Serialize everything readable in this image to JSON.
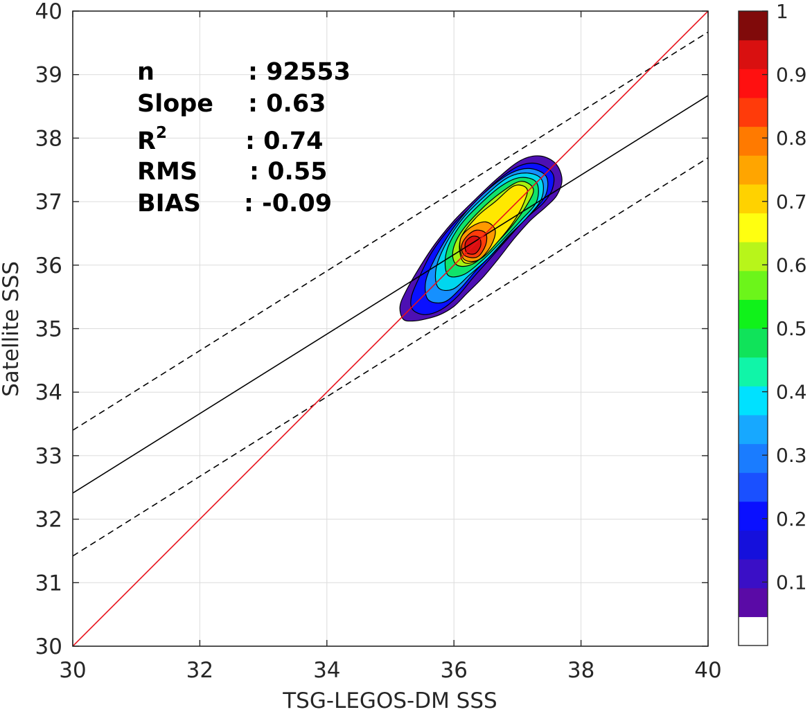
{
  "chart_data": {
    "type": "heatmap",
    "subtype": "filled-contour density scatter",
    "xlabel": "TSG-LEGOS-DM SSS",
    "ylabel": "Satellite SSS",
    "xlim": [
      30,
      40
    ],
    "ylim": [
      30,
      40
    ],
    "x_ticks": [
      30,
      32,
      34,
      36,
      38,
      40
    ],
    "y_ticks": [
      30,
      31,
      32,
      33,
      34,
      35,
      36,
      37,
      38,
      39,
      40
    ],
    "grid": true,
    "stats": [
      {
        "label": "n",
        "sep": ": ",
        "value": "92553"
      },
      {
        "label": "Slope",
        "sep": ": ",
        "value": "0.63"
      },
      {
        "label": "R",
        "sup": "2",
        "sep": ": ",
        "value": "0.74"
      },
      {
        "label": "RMS",
        "sep": ": ",
        "value": "0.55"
      },
      {
        "label": "BIAS",
        "sep": ": ",
        "value": "-0.09"
      }
    ],
    "lines": {
      "identity": {
        "x": [
          30,
          40
        ],
        "y": [
          30,
          40
        ],
        "color": "#e8101a",
        "style": "solid"
      },
      "regression": {
        "x": [
          30,
          40
        ],
        "y": [
          32.41,
          38.67
        ],
        "color": "#000000",
        "style": "solid"
      },
      "upper_bound": {
        "x": [
          30,
          40
        ],
        "y": [
          33.4,
          39.67
        ],
        "color": "#000000",
        "style": "dashed"
      },
      "lower_bound": {
        "x": [
          30,
          40
        ],
        "y": [
          31.42,
          37.69
        ],
        "color": "#000000",
        "style": "dashed"
      }
    },
    "density_levels": [
      {
        "level": 0.05,
        "color": "#4d10b3",
        "points": [
          [
            35.2,
            35.15
          ],
          [
            35.35,
            35.12
          ],
          [
            35.55,
            35.15
          ],
          [
            35.78,
            35.22
          ],
          [
            36.0,
            35.35
          ],
          [
            36.2,
            35.55
          ],
          [
            36.45,
            35.8
          ],
          [
            36.7,
            36.1
          ],
          [
            36.95,
            36.42
          ],
          [
            37.2,
            36.7
          ],
          [
            37.45,
            36.92
          ],
          [
            37.62,
            37.1
          ],
          [
            37.7,
            37.35
          ],
          [
            37.6,
            37.6
          ],
          [
            37.35,
            37.72
          ],
          [
            37.05,
            37.65
          ],
          [
            36.7,
            37.38
          ],
          [
            36.35,
            37.05
          ],
          [
            36.0,
            36.7
          ],
          [
            35.7,
            36.33
          ],
          [
            35.45,
            35.95
          ],
          [
            35.25,
            35.6
          ],
          [
            35.15,
            35.35
          ]
        ]
      },
      {
        "level": 0.1,
        "color": "#0a10ff",
        "points": [
          [
            35.35,
            35.3
          ],
          [
            35.55,
            35.22
          ],
          [
            35.8,
            35.3
          ],
          [
            36.05,
            35.5
          ],
          [
            36.3,
            35.8
          ],
          [
            36.55,
            36.08
          ],
          [
            36.85,
            36.42
          ],
          [
            37.15,
            36.75
          ],
          [
            37.4,
            36.97
          ],
          [
            37.55,
            37.2
          ],
          [
            37.55,
            37.45
          ],
          [
            37.3,
            37.6
          ],
          [
            37.0,
            37.55
          ],
          [
            36.65,
            37.3
          ],
          [
            36.3,
            36.95
          ],
          [
            35.95,
            36.6
          ],
          [
            35.65,
            36.2
          ],
          [
            35.45,
            35.8
          ],
          [
            35.33,
            35.5
          ]
        ]
      },
      {
        "level": 0.2,
        "color": "#1590ff",
        "points": [
          [
            35.6,
            35.45
          ],
          [
            35.85,
            35.42
          ],
          [
            36.1,
            35.63
          ],
          [
            36.35,
            35.92
          ],
          [
            36.65,
            36.22
          ],
          [
            36.95,
            36.55
          ],
          [
            37.25,
            36.85
          ],
          [
            37.45,
            37.12
          ],
          [
            37.45,
            37.4
          ],
          [
            37.2,
            37.52
          ],
          [
            36.9,
            37.45
          ],
          [
            36.55,
            37.2
          ],
          [
            36.2,
            36.85
          ],
          [
            35.9,
            36.45
          ],
          [
            35.65,
            36.0
          ],
          [
            35.55,
            35.7
          ]
        ]
      },
      {
        "level": 0.3,
        "color": "#00d7ee",
        "points": [
          [
            35.75,
            35.65
          ],
          [
            35.98,
            35.62
          ],
          [
            36.25,
            35.85
          ],
          [
            36.55,
            36.12
          ],
          [
            36.85,
            36.45
          ],
          [
            37.15,
            36.75
          ],
          [
            37.38,
            37.05
          ],
          [
            37.38,
            37.35
          ],
          [
            37.15,
            37.45
          ],
          [
            36.85,
            37.38
          ],
          [
            36.5,
            37.1
          ],
          [
            36.15,
            36.75
          ],
          [
            35.88,
            36.35
          ],
          [
            35.72,
            35.95
          ]
        ]
      },
      {
        "level": 0.4,
        "color": "#10e36a",
        "points": [
          [
            35.9,
            35.85
          ],
          [
            36.15,
            35.85
          ],
          [
            36.45,
            36.08
          ],
          [
            36.75,
            36.38
          ],
          [
            37.05,
            36.7
          ],
          [
            37.3,
            37.0
          ],
          [
            37.3,
            37.3
          ],
          [
            37.05,
            37.38
          ],
          [
            36.75,
            37.25
          ],
          [
            36.4,
            36.95
          ],
          [
            36.08,
            36.6
          ],
          [
            35.88,
            36.2
          ]
        ]
      },
      {
        "level": 0.5,
        "color": "#a8f010",
        "points": [
          [
            36.05,
            36.0
          ],
          [
            36.3,
            36.02
          ],
          [
            36.6,
            36.28
          ],
          [
            36.9,
            36.6
          ],
          [
            37.15,
            36.95
          ],
          [
            37.25,
            37.2
          ],
          [
            37.05,
            37.32
          ],
          [
            36.75,
            37.15
          ],
          [
            36.4,
            36.85
          ],
          [
            36.1,
            36.5
          ],
          [
            35.98,
            36.2
          ]
        ]
      },
      {
        "level": 0.6,
        "color": "#ffe800",
        "points": [
          [
            36.15,
            36.05
          ],
          [
            36.42,
            36.1
          ],
          [
            36.7,
            36.38
          ],
          [
            36.95,
            36.7
          ],
          [
            37.1,
            36.98
          ],
          [
            37.15,
            37.2
          ],
          [
            36.95,
            37.25
          ],
          [
            36.65,
            37.0
          ],
          [
            36.35,
            36.75
          ],
          [
            36.1,
            36.4
          ]
        ]
      },
      {
        "level": 0.7,
        "color": "#ff9900",
        "points": [
          [
            36.15,
            36.1
          ],
          [
            36.38,
            36.08
          ],
          [
            36.58,
            36.3
          ],
          [
            36.65,
            36.55
          ],
          [
            36.5,
            36.68
          ],
          [
            36.27,
            36.6
          ],
          [
            36.1,
            36.4
          ]
        ]
      },
      {
        "level": 0.8,
        "color": "#ff3b0a",
        "points": [
          [
            36.17,
            36.15
          ],
          [
            36.37,
            36.13
          ],
          [
            36.5,
            36.32
          ],
          [
            36.5,
            36.5
          ],
          [
            36.35,
            36.55
          ],
          [
            36.2,
            36.45
          ],
          [
            36.12,
            36.3
          ]
        ]
      },
      {
        "level": 0.9,
        "color": "#d91010",
        "points": [
          [
            36.2,
            36.2
          ],
          [
            36.33,
            36.18
          ],
          [
            36.42,
            36.3
          ],
          [
            36.4,
            36.43
          ],
          [
            36.28,
            36.45
          ],
          [
            36.18,
            36.35
          ]
        ]
      }
    ],
    "colorbar": {
      "range": [
        0,
        1
      ],
      "tick_values": [
        0.1,
        0.2,
        0.3,
        0.4,
        0.5,
        0.6,
        0.7,
        0.8,
        0.9,
        1
      ],
      "tick_labels": [
        "0.1",
        "0.2",
        "0.3",
        "0.4",
        "0.5",
        "0.6",
        "0.7",
        "0.8",
        "0.9",
        "1"
      ],
      "colors": [
        "#ffffff",
        "#5a0aa6",
        "#3a0fc6",
        "#1510dc",
        "#0a10ff",
        "#1a50ff",
        "#1a7cff",
        "#17a8ff",
        "#00e1ff",
        "#10f5a8",
        "#10e35a",
        "#10f21a",
        "#6cf51a",
        "#b8f51a",
        "#ffff10",
        "#ffd200",
        "#ffa500",
        "#ff7a00",
        "#ff3b0a",
        "#ff1010",
        "#d91010",
        "#800a0a"
      ]
    }
  }
}
